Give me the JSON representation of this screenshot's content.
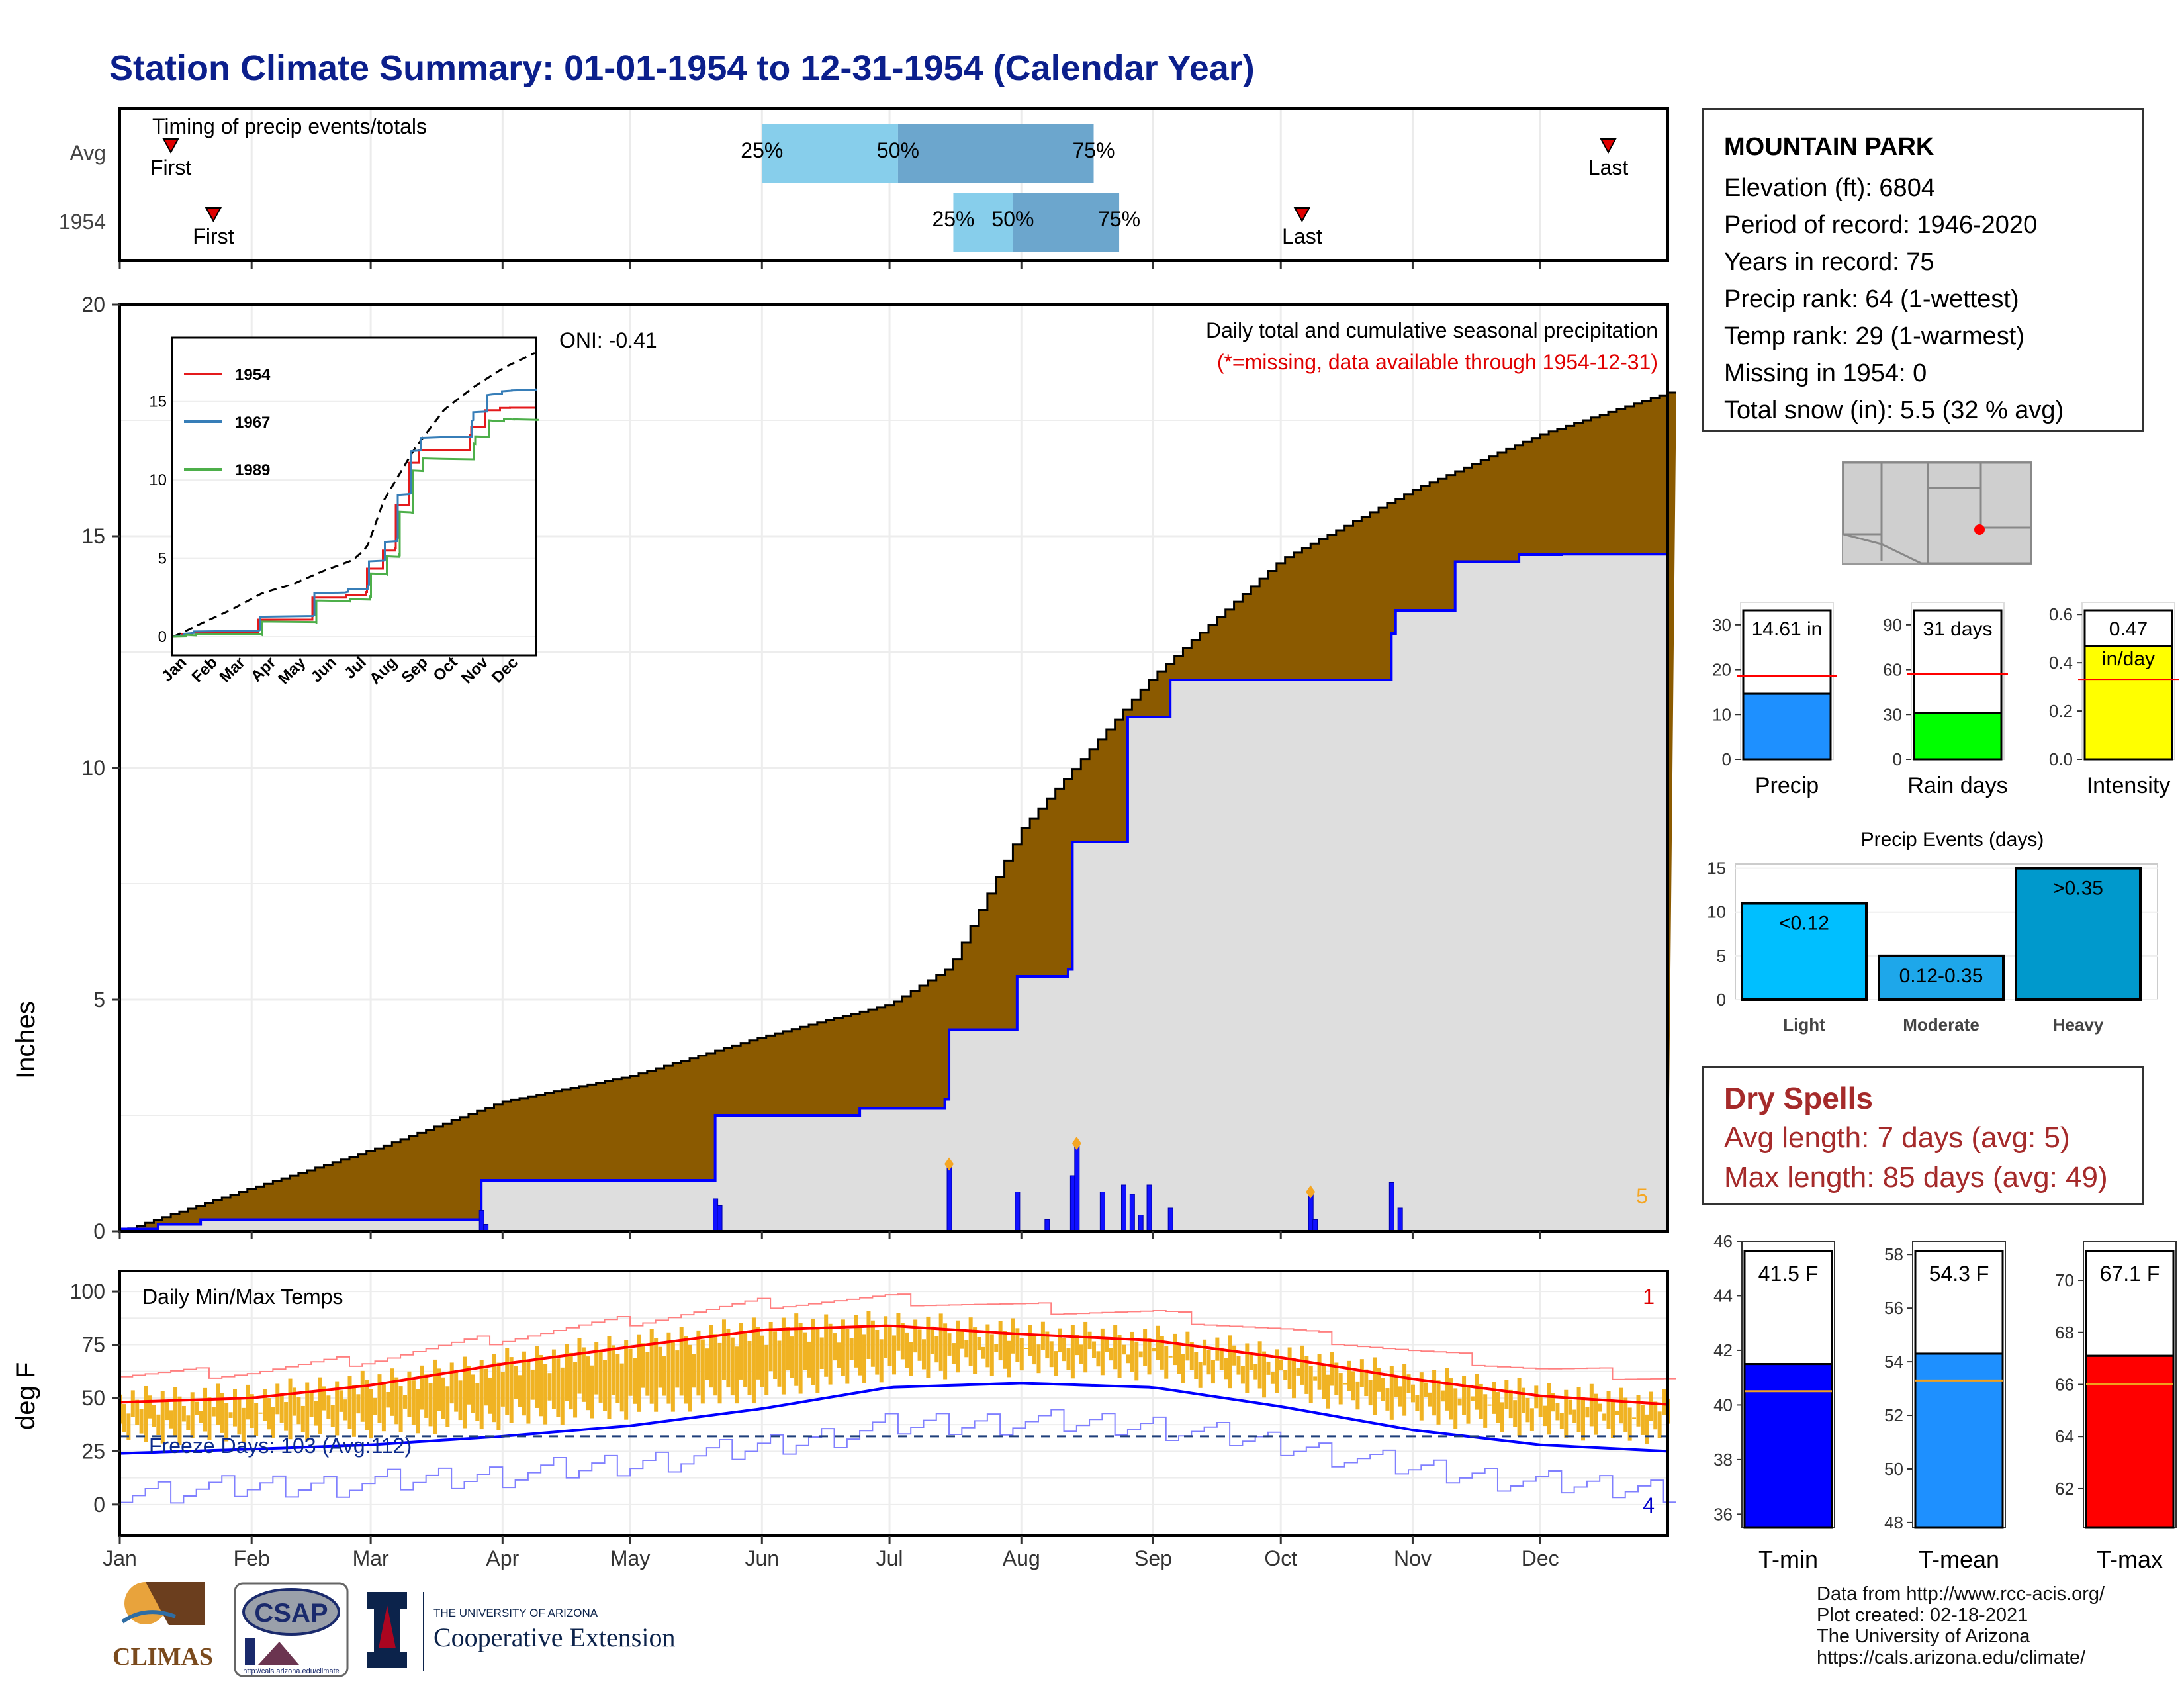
{
  "title": "Station Climate Summary: 01-01-1954 to 12-31-1954 (Calendar Year)",
  "colors": {
    "title": "#0b1f8c",
    "precip_area": "#8B5A00",
    "observed_fill": "#dedede",
    "observed_line": "#0000ff",
    "temp_bar": "#f0b323",
    "tmax_line": "#ff0000",
    "tmin_line": "#0000ff",
    "dry": "#a52a2a"
  },
  "station": {
    "name": "MOUNTAIN PARK",
    "lines": [
      "Elevation (ft): 6804",
      "Period of record: 1946-2020",
      "Years in record: 75",
      "Precip rank: 64 (1-wettest)",
      "Temp rank: 29 (1-warmest)",
      "Missing in 1954: 0",
      "Total snow (in): 5.5 (32 % avg)"
    ]
  },
  "timing": {
    "title": "Timing of precip events/totals",
    "rows": [
      "Avg",
      "1954"
    ],
    "first_label": "First",
    "last_label": "Last",
    "pct_labels": [
      "25%",
      "50%",
      "75%"
    ]
  },
  "precip_panel": {
    "ylabel": "Inches",
    "note1": "Daily total and cumulative seasonal precipitation",
    "note2": "(*=missing, data available through 1954-12-31)",
    "oni": "ONI: -0.41",
    "count_label": "5",
    "yticks": [
      "0",
      "5",
      "10",
      "15",
      "20"
    ],
    "inset": {
      "yticks": [
        "0",
        "5",
        "10",
        "15"
      ],
      "xticks": [
        "Jan",
        "Feb",
        "Mar",
        "Apr",
        "May",
        "Jun",
        "Jul",
        "Aug",
        "Sep",
        "Oct",
        "Nov",
        "Dec"
      ],
      "legend": [
        "1954",
        "1967",
        "1989"
      ],
      "legend_colors": [
        "#e41a1c",
        "#377eb8",
        "#4daf4a"
      ]
    }
  },
  "temp_panel": {
    "title": "Daily Min/Max Temps",
    "ylabel": "deg F",
    "freeze": "Freeze Days: 103 (Avg:112)",
    "count_top": "1",
    "count_bottom": "4",
    "yticks": [
      "0",
      "25",
      "50",
      "75",
      "100"
    ],
    "months": [
      "Jan",
      "Feb",
      "Mar",
      "Apr",
      "May",
      "Jun",
      "Jul",
      "Aug",
      "Sep",
      "Oct",
      "Nov",
      "Dec"
    ]
  },
  "small_bars": [
    {
      "label": "Precip",
      "value_text": "14.61 in",
      "value": 14.61,
      "avg": 18.6,
      "max": 35,
      "ticks": [
        "0",
        "10",
        "20",
        "30"
      ],
      "color": "#1e90ff"
    },
    {
      "label": "Rain days",
      "value_text": "31 days",
      "value": 31,
      "avg": 57,
      "max": 105,
      "ticks": [
        "0",
        "30",
        "60",
        "90"
      ],
      "color": "#00ff00"
    },
    {
      "label": "Intensity",
      "value_text": "0.47",
      "value_text2": "in/day",
      "value": 0.47,
      "avg": 0.33,
      "max": 0.65,
      "ticks": [
        "0.0",
        "0.2",
        "0.4",
        "0.6"
      ],
      "color": "#ffff00"
    }
  ],
  "events": {
    "title": "Precip Events (days)",
    "yticks": [
      "0",
      "5",
      "10",
      "15"
    ],
    "bars": [
      {
        "label": "Light",
        "tag": "<0.12",
        "value": 11,
        "color": "#00bfff"
      },
      {
        "label": "Moderate",
        "tag": "0.12-0.35",
        "value": 5,
        "color": "#1ea7ea"
      },
      {
        "label": "Heavy",
        "tag": ">0.35",
        "value": 15,
        "color": "#0099cc"
      }
    ]
  },
  "dry_spells": {
    "title": "Dry Spells",
    "avg": "Avg length: 7 days (avg: 5)",
    "max": "Max length: 85 days (avg: 49)"
  },
  "temp_bars": [
    {
      "label": "T-min",
      "value_text": "41.5 F",
      "value": 41.5,
      "avg": 40.5,
      "ymin": 35.5,
      "ymax": 46,
      "ticks": [
        "36",
        "38",
        "40",
        "42",
        "44",
        "46"
      ],
      "color": "#0000ff"
    },
    {
      "label": "T-mean",
      "value_text": "54.3 F",
      "value": 54.3,
      "avg": 53.3,
      "ymin": 47.8,
      "ymax": 58.5,
      "ticks": [
        "48",
        "50",
        "52",
        "54",
        "56",
        "58"
      ],
      "color": "#1e90ff"
    },
    {
      "label": "T-max",
      "value_text": "67.1 F",
      "value": 67.1,
      "avg": 66,
      "ymin": 60.5,
      "ymax": 71.5,
      "ticks": [
        "62",
        "64",
        "66",
        "68",
        "70"
      ],
      "color": "#ff0000"
    }
  ],
  "credits": [
    "Data from http://www.rcc-acis.org/",
    "Plot created: 02-18-2021",
    "The University of Arizona",
    "https://cals.arizona.edu/climate/"
  ],
  "logos": {
    "climas": "CLIMAS",
    "csap": "CSAP",
    "csap_url": "http://cals.arizona.edu/climate",
    "ua_small": "THE UNIVERSITY OF ARIZONA",
    "ua_big": "Cooperative Extension"
  },
  "chart_data": [
    {
      "type": "line",
      "title": "Timing of precip events/totals",
      "xlim": [
        "1954-01-01",
        "1954-12-31"
      ],
      "series": [
        {
          "name": "Avg",
          "first": "1954-01-13",
          "pct25": "1954-06-01",
          "pct50": "1954-07-03",
          "pct75": "1954-08-18",
          "last": "1954-12-17"
        },
        {
          "name": "1954",
          "first": "1954-01-23",
          "pct25": "1954-07-16",
          "pct50": "1954-07-30",
          "pct75": "1954-08-24",
          "last": "1954-10-06"
        }
      ]
    },
    {
      "type": "area",
      "title": "Daily total and cumulative seasonal precipitation",
      "ylabel": "Inches",
      "ylim": [
        0,
        20
      ],
      "avg_cumulative": {
        "doy": [
          1,
          29,
          60,
          91,
          121,
          152,
          182,
          196,
          213,
          244,
          274,
          305,
          335,
          365
        ],
        "values": [
          0,
          0.85,
          1.75,
          2.8,
          3.35,
          4.2,
          4.9,
          5.7,
          8.7,
          12.0,
          14.5,
          16.0,
          17.2,
          18.1
        ]
      },
      "obs_cumulative": {
        "doy": [
          1,
          10,
          20,
          85,
          86,
          140,
          141,
          172,
          175,
          195,
          196,
          211,
          212,
          224,
          225,
          236,
          238,
          248,
          268,
          300,
          301,
          315,
          320,
          330,
          340,
          365
        ],
        "values": [
          0.05,
          0.15,
          0.25,
          0.25,
          1.1,
          1.1,
          2.5,
          2.5,
          2.65,
          2.85,
          4.35,
          4.35,
          5.5,
          5.65,
          8.4,
          8.4,
          11.1,
          11.9,
          11.9,
          12.9,
          13.4,
          14.45,
          14.45,
          14.6,
          14.61,
          14.61
        ]
      },
      "daily_bars": {
        "doy": [
          86,
          87,
          141,
          142,
          196,
          212,
          219,
          225,
          226,
          232,
          237,
          239,
          241,
          243,
          248,
          281,
          282,
          300,
          302
        ],
        "values": [
          0.45,
          0.15,
          0.7,
          0.55,
          1.45,
          0.85,
          0.25,
          1.2,
          1.9,
          0.85,
          1.0,
          0.8,
          0.35,
          1.0,
          0.5,
          0.85,
          0.25,
          1.05,
          0.5
        ]
      }
    },
    {
      "type": "line",
      "title": "Daily Min/Max Temps",
      "ylabel": "deg F",
      "ylim": [
        -10,
        105
      ],
      "avg_tmax": {
        "doy": [
          1,
          32,
          60,
          91,
          121,
          152,
          182,
          213,
          244,
          274,
          305,
          335,
          365
        ],
        "values": [
          48,
          50,
          56,
          66,
          74,
          82,
          84,
          80,
          77,
          69,
          59,
          51,
          47
        ]
      },
      "avg_tmin": {
        "doy": [
          1,
          32,
          60,
          91,
          121,
          152,
          182,
          213,
          244,
          274,
          305,
          335,
          365
        ],
        "values": [
          24,
          26,
          28,
          32,
          37,
          45,
          55,
          57,
          55,
          46,
          35,
          28,
          25
        ]
      },
      "freeze_line": 32
    },
    {
      "type": "bar",
      "title": "Precip Events (days)",
      "categories": [
        "Light",
        "Moderate",
        "Heavy"
      ],
      "values": [
        11,
        5,
        15
      ]
    }
  ]
}
